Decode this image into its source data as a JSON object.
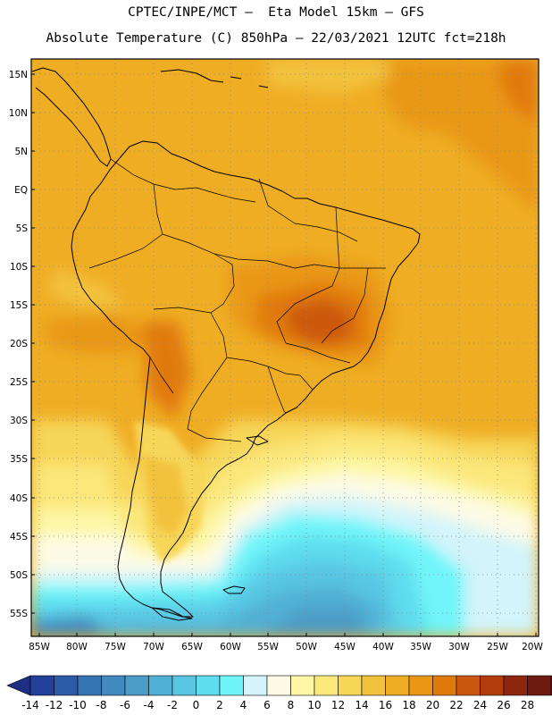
{
  "header": {
    "line1": "CPTEC/INPE/MCT –  Eta Model 15km – GFS",
    "line2": "Absolute Temperature (C) 850hPa – 22/03/2021 12UTC fct=218h"
  },
  "map": {
    "variable": "Absolute Temperature (C) 850hPa",
    "lon_range": [
      -86,
      -19
    ],
    "lat_range": [
      -58.5,
      16
    ],
    "lat_labels": [
      "15N",
      "10N",
      "5N",
      "EQ",
      "5S",
      "10S",
      "15S",
      "20S",
      "25S",
      "30S",
      "35S",
      "40S",
      "45S",
      "50S",
      "55S"
    ],
    "lon_labels": [
      "85W",
      "80W",
      "75W",
      "70W",
      "65W",
      "60W",
      "55W",
      "50W",
      "45W",
      "40W",
      "35W",
      "30W",
      "25W",
      "20W"
    ]
  },
  "colorbar": {
    "ticks": [
      "-14",
      "-12",
      "-10",
      "-8",
      "-6",
      "-4",
      "-2",
      "0",
      "2",
      "4",
      "6",
      "8",
      "10",
      "12",
      "14",
      "16",
      "18",
      "20",
      "22",
      "24",
      "26",
      "28"
    ],
    "colors": [
      "#23409a",
      "#2c5ba8",
      "#3774b4",
      "#4289bf",
      "#4c9cc8",
      "#51b0d6",
      "#58c6e3",
      "#5fdcee",
      "#6ff5f9",
      "#d2f4fa",
      "#fdfbe6",
      "#fdf7a6",
      "#fbe77a",
      "#f7d658",
      "#f3c23c",
      "#efad24",
      "#e99714",
      "#e17a0d",
      "#cc5810",
      "#b23c0d",
      "#8f2710",
      "#6e1a10"
    ],
    "under_color": "#1f2e85",
    "over_color": "#8e0e35"
  }
}
